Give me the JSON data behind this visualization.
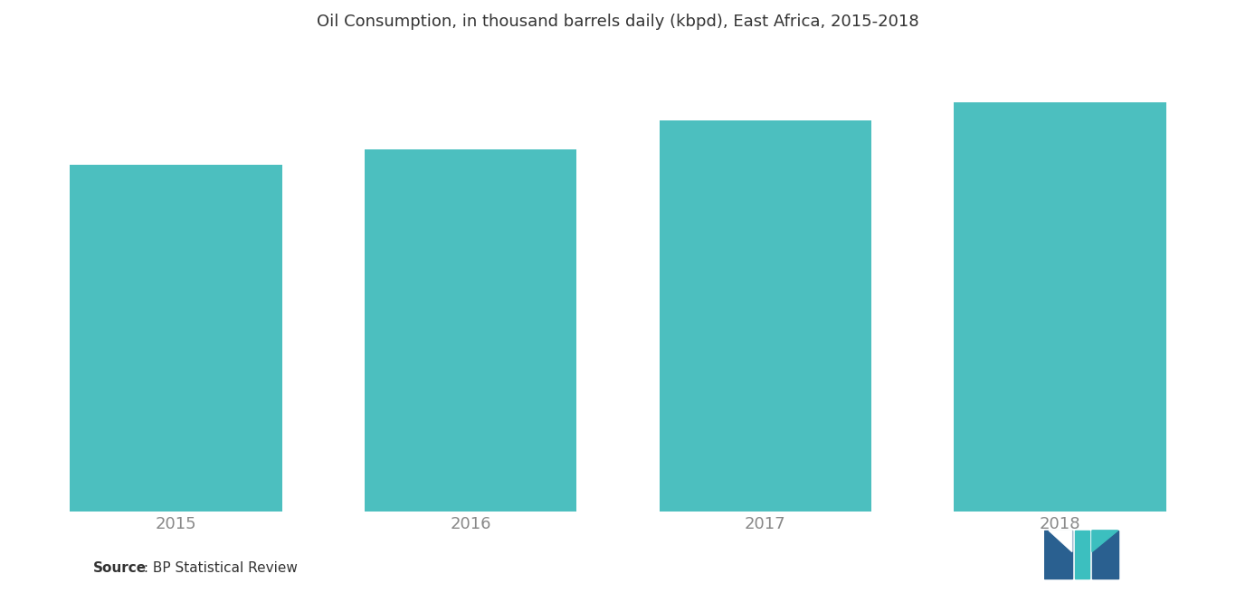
{
  "title": "Oil Consumption, in thousand barrels daily (kbpd), East Africa, 2015-2018",
  "categories": [
    "2015",
    "2016",
    "2017",
    "2018"
  ],
  "values": [
    470,
    490,
    530,
    555
  ],
  "bar_color": "#4CBFBF",
  "background_color": "#ffffff",
  "ylim": [
    0,
    620
  ],
  "source_label_bold": "Source",
  "source_label_rest": " : BP Statistical Review",
  "title_fontsize": 13,
  "tick_fontsize": 13,
  "source_fontsize": 11,
  "bar_width": 0.72,
  "logo_colors_dark": [
    "#2B5EA7",
    "#2166A4"
  ],
  "logo_colors_teal": [
    "#3CBFC0",
    "#2A9BA0"
  ],
  "tick_color": "#888888"
}
